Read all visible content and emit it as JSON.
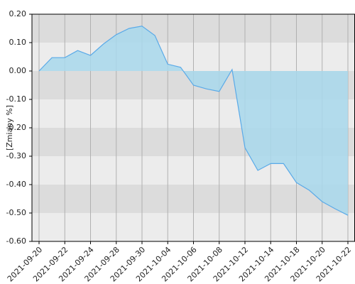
{
  "chart_data": {
    "type": "area",
    "y_label": "[Zmiany %]",
    "x": [
      "2021-09-20",
      "2021-09-21",
      "2021-09-22",
      "2021-09-23",
      "2021-09-24",
      "2021-09-27",
      "2021-09-28",
      "2021-09-29",
      "2021-09-30",
      "2021-10-01",
      "2021-10-04",
      "2021-10-05",
      "2021-10-06",
      "2021-10-07",
      "2021-10-08",
      "2021-10-11",
      "2021-10-12",
      "2021-10-13",
      "2021-10-14",
      "2021-10-15",
      "2021-10-18",
      "2021-10-19",
      "2021-10-20",
      "2021-10-21",
      "2021-10-22"
    ],
    "values": [
      0.0,
      0.047,
      0.047,
      0.072,
      0.055,
      0.095,
      0.128,
      0.15,
      0.158,
      0.125,
      0.024,
      0.013,
      -0.05,
      -0.063,
      -0.072,
      0.005,
      -0.27,
      -0.35,
      -0.326,
      -0.326,
      -0.393,
      -0.42,
      -0.46,
      -0.485,
      -0.508
    ],
    "color": "#5aaae8",
    "fill": "#a8d8ec",
    "xticks": [
      "2021-09-20",
      "2021-09-22",
      "2021-09-24",
      "2021-09-28",
      "2021-09-30",
      "2021-10-04",
      "2021-10-06",
      "2021-10-08",
      "2021-10-12",
      "2021-10-14",
      "2021-10-18",
      "2021-10-20",
      "2021-10-22"
    ],
    "ylim": [
      -0.6,
      0.2
    ],
    "yticks": [
      {
        "value": 0.2,
        "label": "0.20"
      },
      {
        "value": 0.1,
        "label": "0.10"
      },
      {
        "value": 0,
        "label": "0.00"
      },
      {
        "value": -0.1,
        "label": "-0.10"
      },
      {
        "value": -0.2,
        "label": "-0.20"
      },
      {
        "value": -0.3,
        "label": "-0.30"
      },
      {
        "value": -0.4,
        "label": "-0.40"
      },
      {
        "value": -0.5,
        "label": "-0.50"
      },
      {
        "value": -0.6,
        "label": "-0.60"
      }
    ],
    "grid": true
  }
}
